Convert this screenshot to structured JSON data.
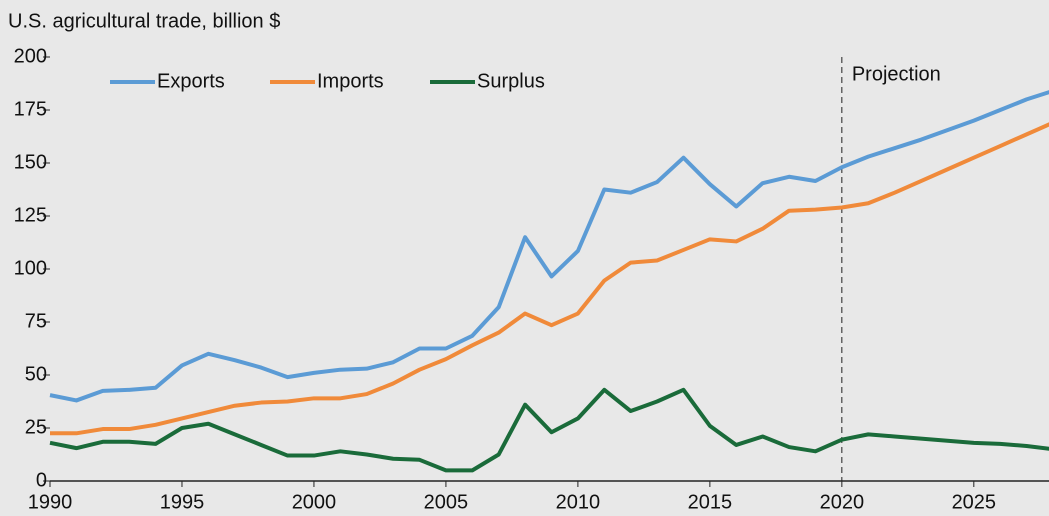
{
  "chart_data": {
    "type": "line",
    "y_axis_title": "U.S. agricultural trade, billion $",
    "x": [
      1990,
      1991,
      1992,
      1993,
      1994,
      1995,
      1996,
      1997,
      1998,
      1999,
      2000,
      2001,
      2002,
      2003,
      2004,
      2005,
      2006,
      2007,
      2008,
      2009,
      2010,
      2011,
      2012,
      2013,
      2014,
      2015,
      2016,
      2017,
      2018,
      2019,
      2020,
      2021,
      2022,
      2023,
      2024,
      2025,
      2026,
      2027,
      2028
    ],
    "series": [
      {
        "name": "Exports",
        "color": "#5b9bd5",
        "values": [
          40.5,
          38,
          42.5,
          43,
          44,
          54.5,
          60,
          57,
          53.5,
          49,
          51,
          52.5,
          53,
          56,
          62.5,
          62.5,
          68.5,
          82,
          115,
          96.5,
          108.5,
          137.5,
          136,
          141,
          152.5,
          140,
          129.5,
          140.5,
          143.5,
          141.5,
          148,
          153,
          157,
          161,
          165.5,
          170,
          175,
          180,
          184
        ]
      },
      {
        "name": "Imports",
        "color": "#f08a3a",
        "values": [
          22.5,
          22.5,
          24.5,
          24.5,
          26.5,
          29.5,
          32.5,
          35.5,
          37,
          37.5,
          39,
          39,
          41,
          46,
          52.5,
          57.5,
          64,
          70,
          79,
          73.5,
          79,
          94.5,
          103,
          104,
          109,
          114,
          113,
          119,
          127.5,
          128,
          129,
          131,
          136,
          141.5,
          147,
          152.5,
          158,
          163.5,
          169
        ]
      },
      {
        "name": "Surplus",
        "color": "#1a6b3a",
        "values": [
          18,
          15.5,
          18.5,
          18.5,
          17.5,
          25,
          27,
          22,
          17,
          12,
          12,
          14,
          12.5,
          10.5,
          10,
          5,
          5,
          12.5,
          36,
          23,
          29.5,
          43,
          33,
          37.5,
          43,
          26,
          17,
          21,
          16,
          14,
          19.5,
          22,
          21,
          20,
          19,
          18,
          17.5,
          16.5,
          15
        ]
      }
    ],
    "xlim": [
      1990,
      2028
    ],
    "xticks": [
      1990,
      1995,
      2000,
      2005,
      2010,
      2015,
      2020,
      2025
    ],
    "ylim": [
      0,
      200
    ],
    "yticks": [
      0,
      25,
      50,
      75,
      100,
      125,
      150,
      175,
      200
    ],
    "annotations": [
      {
        "text": "Projection",
        "x": 2020
      }
    ]
  }
}
